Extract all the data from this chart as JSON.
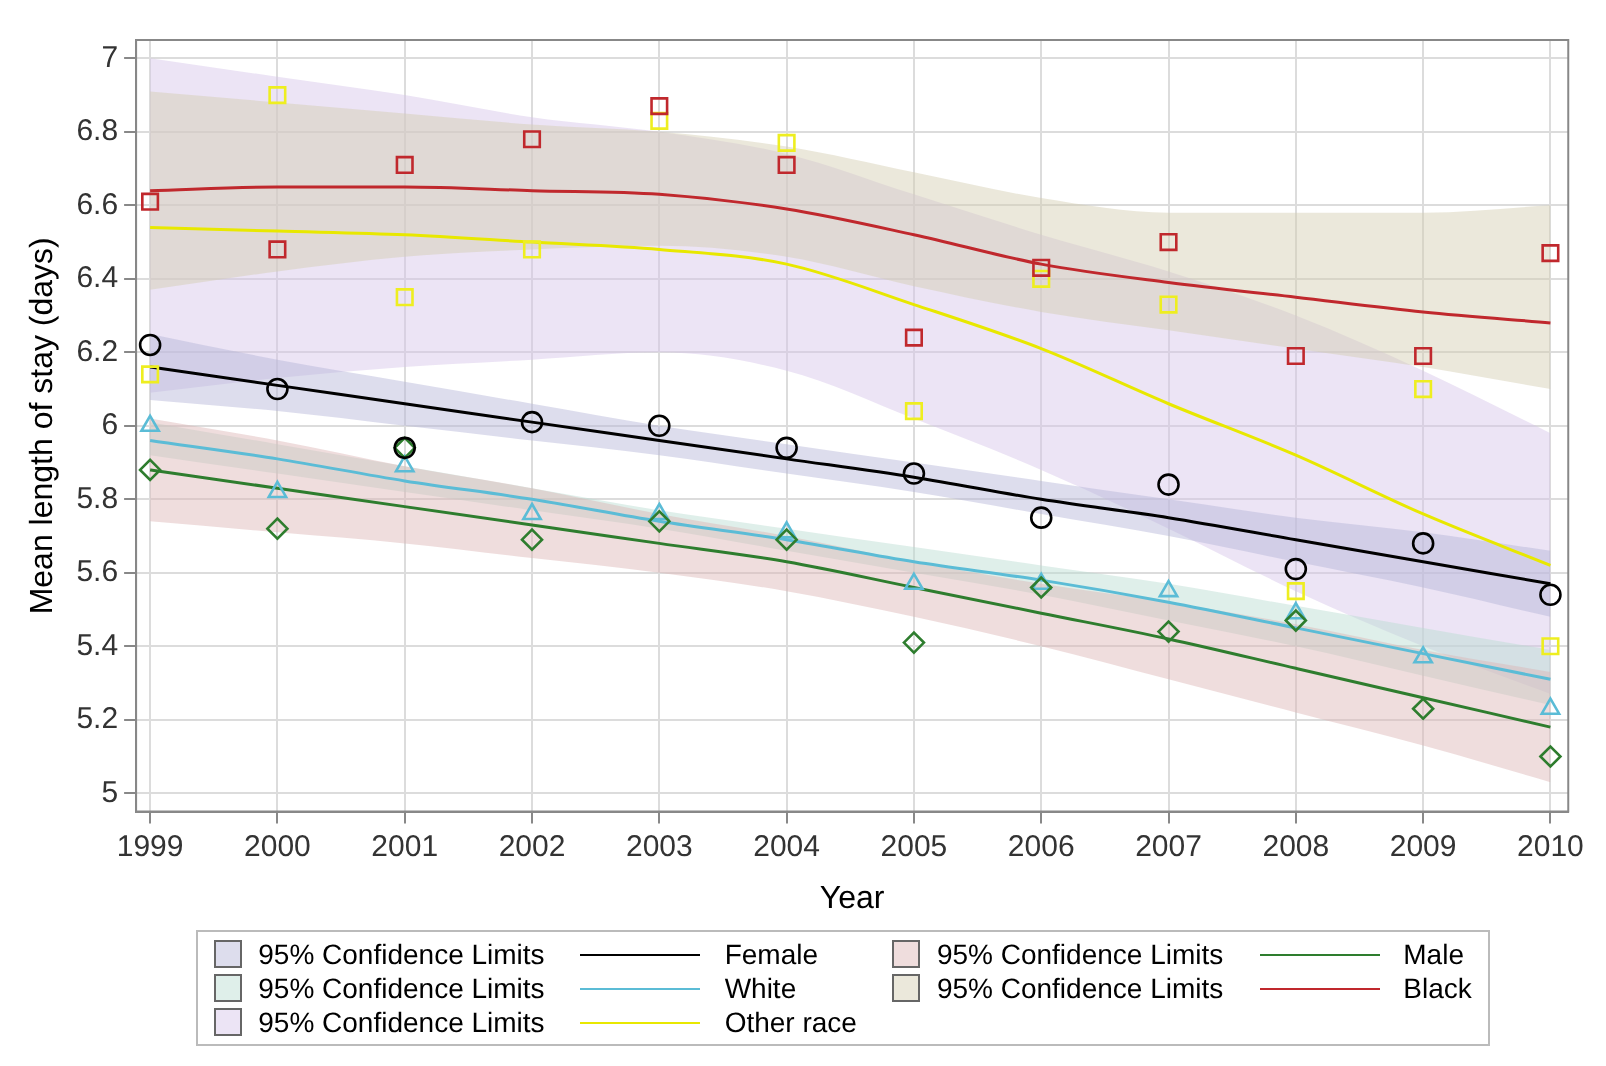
{
  "chart_data": {
    "type": "line",
    "xlabel": "Year",
    "ylabel": "Mean length of stay (days)",
    "x": [
      1999,
      2000,
      2001,
      2002,
      2003,
      2004,
      2005,
      2006,
      2007,
      2008,
      2009,
      2010
    ],
    "xlim": [
      1998.89,
      2010.14
    ],
    "xticks": [
      1999,
      2000,
      2001,
      2002,
      2003,
      2004,
      2005,
      2006,
      2007,
      2008,
      2009,
      2010
    ],
    "ylim": [
      4.95,
      7.05
    ],
    "yticks": [
      5,
      5.2,
      5.4,
      5.6,
      5.8,
      6,
      6.2,
      6.4,
      6.6,
      6.8,
      7
    ],
    "grid": true,
    "legend": "bottom",
    "annotations": [
      "95% Confidence Limits",
      "95% Confidence Limits",
      "95% Confidence Limits",
      "95% Confidence Limits",
      "95% Confidence Limits"
    ],
    "series": [
      {
        "name": "Female",
        "color": "#000000",
        "marker": "none",
        "values": [
          6.16,
          6.11,
          6.06,
          6.01,
          5.96,
          5.91,
          5.86,
          5.8,
          5.75,
          5.69,
          5.63,
          5.57
        ],
        "lower": [
          6.07,
          6.04,
          6.0,
          5.96,
          5.92,
          5.87,
          5.82,
          5.76,
          5.7,
          5.63,
          5.56,
          5.48
        ],
        "upper": [
          6.25,
          6.18,
          6.12,
          6.06,
          6.0,
          5.95,
          5.9,
          5.85,
          5.8,
          5.75,
          5.71,
          5.66
        ]
      },
      {
        "name": "Male",
        "color": "#2e7d2e",
        "marker": "none",
        "values": [
          5.88,
          5.83,
          5.78,
          5.73,
          5.68,
          5.63,
          5.56,
          5.49,
          5.42,
          5.34,
          5.26,
          5.18
        ],
        "lower": [
          5.74,
          5.71,
          5.68,
          5.64,
          5.6,
          5.55,
          5.48,
          5.4,
          5.31,
          5.22,
          5.13,
          5.03
        ],
        "upper": [
          6.02,
          5.96,
          5.89,
          5.83,
          5.76,
          5.7,
          5.63,
          5.57,
          5.52,
          5.46,
          5.39,
          5.33
        ]
      },
      {
        "name": "White",
        "color": "#5bbcd6",
        "marker": "none",
        "values": [
          5.96,
          5.91,
          5.85,
          5.8,
          5.74,
          5.69,
          5.63,
          5.58,
          5.52,
          5.45,
          5.38,
          5.31
        ],
        "lower": [
          5.92,
          5.87,
          5.82,
          5.77,
          5.72,
          5.66,
          5.6,
          5.54,
          5.47,
          5.4,
          5.32,
          5.24
        ],
        "upper": [
          6.01,
          5.95,
          5.89,
          5.83,
          5.77,
          5.72,
          5.67,
          5.62,
          5.57,
          5.51,
          5.45,
          5.39
        ]
      },
      {
        "name": "Black",
        "color": "#c0282d",
        "marker": "none",
        "values": [
          6.64,
          6.65,
          6.65,
          6.64,
          6.63,
          6.59,
          6.52,
          6.44,
          6.39,
          6.35,
          6.31,
          6.28
        ],
        "lower": [
          6.37,
          6.42,
          6.46,
          6.48,
          6.49,
          6.46,
          6.38,
          6.31,
          6.26,
          6.21,
          6.16,
          6.1
        ],
        "upper": [
          6.91,
          6.88,
          6.85,
          6.82,
          6.8,
          6.76,
          6.69,
          6.62,
          6.58,
          6.58,
          6.58,
          6.6
        ]
      },
      {
        "name": "Other race",
        "color": "#e8e800",
        "marker": "none",
        "values": [
          6.54,
          6.53,
          6.52,
          6.5,
          6.48,
          6.44,
          6.33,
          6.21,
          6.06,
          5.92,
          5.76,
          5.62
        ],
        "lower": [
          6.09,
          6.13,
          6.16,
          6.18,
          6.2,
          6.15,
          6.02,
          5.88,
          5.72,
          5.55,
          5.4,
          5.27
        ],
        "upper": [
          7.0,
          6.95,
          6.9,
          6.84,
          6.8,
          6.74,
          6.63,
          6.52,
          6.42,
          6.3,
          6.15,
          5.98
        ]
      },
      {
        "type": "scatter",
        "color": "#000000",
        "marker": "circle",
        "values": [
          6.22,
          6.1,
          5.94,
          6.01,
          6.0,
          5.94,
          5.87,
          5.75,
          5.84,
          5.61,
          5.68,
          5.54
        ]
      },
      {
        "type": "scatter",
        "color": "#2e7d2e",
        "marker": "diamond",
        "values": [
          5.88,
          5.72,
          5.94,
          5.69,
          5.74,
          5.69,
          5.41,
          5.56,
          5.44,
          5.47,
          5.23,
          5.1
        ]
      },
      {
        "type": "scatter",
        "color": "#5bbcd6",
        "marker": "triangle",
        "values": [
          6.0,
          5.82,
          5.89,
          5.76,
          5.76,
          5.71,
          5.57,
          5.57,
          5.55,
          5.49,
          5.37,
          5.23
        ]
      },
      {
        "type": "scatter",
        "color": "#c0282d",
        "marker": "square",
        "values": [
          6.61,
          6.48,
          6.71,
          6.78,
          6.87,
          6.71,
          6.24,
          6.43,
          6.5,
          6.19,
          6.19,
          6.47
        ]
      },
      {
        "type": "scatter",
        "color": "#eeee20",
        "marker": "square",
        "values": [
          6.14,
          6.9,
          6.35,
          6.48,
          6.83,
          6.77,
          6.04,
          6.4,
          6.33,
          5.55,
          6.1,
          5.4
        ]
      }
    ]
  }
}
